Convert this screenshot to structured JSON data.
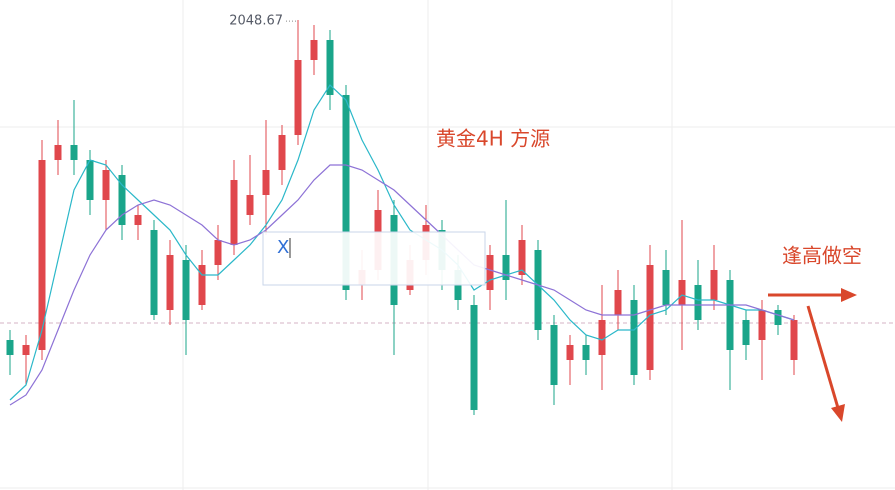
{
  "chart_data": {
    "type": "candlestick",
    "title": "黄金4H 方源",
    "annotations": [
      "逢高做空"
    ],
    "max_label": 2048.67,
    "ylim": [
      1954.5,
      2052.5
    ],
    "price_line": 1987.9,
    "up_color": "#e0474c",
    "down_color": "#1aa58a",
    "open": [
      1984.5,
      1981.5,
      1982.5,
      2020.5,
      2023.5,
      2020.5,
      2012.5,
      2017.5,
      2007.5,
      2006.5,
      1990.5,
      2000.5,
      1991.5,
      1999.5,
      2003.5,
      2009.5,
      2013.5,
      2018.5,
      2025.5,
      2040.5,
      2044.5,
      2033.5,
      1995.5,
      1998.5,
      2009.5,
      1994.5,
      2000.5,
      2006.5,
      1998.5,
      1991.5,
      1994.5,
      2001.5,
      1997.5,
      2002.5,
      1987.5,
      1980.5,
      1983.5,
      1981.5,
      1989.5,
      1992.5,
      1978.5,
      1998.5,
      1991.5,
      1995.5,
      1992.5,
      1996.5,
      1988.5,
      1984.5,
      1990.5,
      1980.5
    ],
    "high": [
      1986.5,
      1985.5,
      2024.5,
      2028.5,
      2032.5,
      2022.5,
      2020.5,
      2019.5,
      2011.5,
      2008.5,
      2004.5,
      2003.5,
      2002.5,
      2007.5,
      2020.5,
      2021.5,
      2028.5,
      2027.5,
      2048.5,
      2047.5,
      2046.5,
      2035.5,
      2002.5,
      2014.5,
      2012.5,
      2003.5,
      2011.5,
      2008.5,
      2001.5,
      1993.5,
      2003.5,
      2012.5,
      2007.5,
      2004.5,
      1989.5,
      1985.5,
      1985.5,
      1995.5,
      1998.5,
      1995.5,
      2003.5,
      2002.5,
      2008.5,
      2000.5,
      2003.5,
      1998.5,
      1990.5,
      1992.5,
      1991.5,
      1989.5
    ],
    "low": [
      1977.5,
      1975.5,
      1980.5,
      2017.5,
      2017.5,
      2009.5,
      2006.5,
      2004.5,
      2004.5,
      1988.5,
      1987.5,
      1981.5,
      1990.5,
      1996.5,
      2001.5,
      2007.5,
      2005.5,
      2015.5,
      2023.5,
      2037.5,
      2030.5,
      1992.5,
      1992.5,
      1996.5,
      1981.5,
      1993.5,
      1997.5,
      1994.5,
      1990.5,
      1969.5,
      1990.5,
      1992.5,
      1995.5,
      1984.5,
      1971.5,
      1975.5,
      1977.5,
      1974.5,
      1986.5,
      1975.5,
      1976.5,
      1989.5,
      1982.5,
      1986.5,
      1990.5,
      1974.5,
      1980.5,
      1976.5,
      1985.5,
      1977.5
    ],
    "close": [
      1981.5,
      1983.5,
      2020.5,
      2023.5,
      2020.5,
      2012.5,
      2018.5,
      2007.5,
      2009.5,
      1989.5,
      2001.5,
      1988.5,
      1999.5,
      2004.5,
      2016.5,
      2013.5,
      2018.5,
      2025.5,
      2040.5,
      2044.5,
      2033.5,
      1994.5,
      1998.5,
      2010.5,
      1991.5,
      2000.5,
      2007.5,
      1998.5,
      1992.5,
      1970.5,
      2001.5,
      1996.5,
      2004.5,
      1986.5,
      1975.5,
      1983.5,
      1980.5,
      1988.5,
      1994.5,
      1977.5,
      1999.5,
      1991.5,
      1996.5,
      1988.5,
      1998.5,
      1982.5,
      1983.5,
      1990.5,
      1987.5,
      1988.5
    ],
    "lines": [
      {
        "color": "#2bb8c9",
        "values": [
          1972.5,
          1975.5,
          1986.5,
          2000.5,
          2014.5,
          2020.5,
          2019.5,
          2015.5,
          2012.5,
          2009.5,
          2006.5,
          2001.5,
          1997.5,
          1997.5,
          2000.5,
          2003.5,
          2007.5,
          2012.5,
          2020.5,
          2030.5,
          2035.5,
          2032.5,
          2024.5,
          2018.5,
          2011.5,
          2006.5,
          2004.5,
          2002.5,
          1999.5,
          1994.5,
          1996.5,
          1997.5,
          1998.5,
          1995.5,
          1992.5,
          1988.5,
          1985.5,
          1984.5,
          1986.5,
          1986.5,
          1989.5,
          1990.5,
          1993.5,
          1992.5,
          1992.5,
          1991.5,
          1990.5,
          1990.5,
          1989.5,
          1988.5
        ]
      },
      {
        "color": "#8d72d6",
        "values": [
          1971.5,
          1973.5,
          1978.5,
          1986.5,
          1994.5,
          2001.5,
          2006.5,
          2009.5,
          2011.5,
          2012.5,
          2011.5,
          2009.5,
          2007.5,
          2004.5,
          2003.5,
          2004.5,
          2006.5,
          2009.5,
          2012.5,
          2016.5,
          2019.5,
          2019.5,
          2018.5,
          2016.5,
          2014.5,
          2011.5,
          2008.5,
          2005.5,
          2002.5,
          1999.5,
          1998.5,
          1997.5,
          1996.5,
          1995.5,
          1994.5,
          1992.5,
          1990.5,
          1989.5,
          1989.5,
          1989.5,
          1990.5,
          1991.5,
          1991.5,
          1991.5,
          1991.5,
          1991.5,
          1991.5,
          1990.5,
          1989.5,
          1988.5
        ]
      }
    ]
  },
  "overlay": {
    "input_text": "X"
  }
}
